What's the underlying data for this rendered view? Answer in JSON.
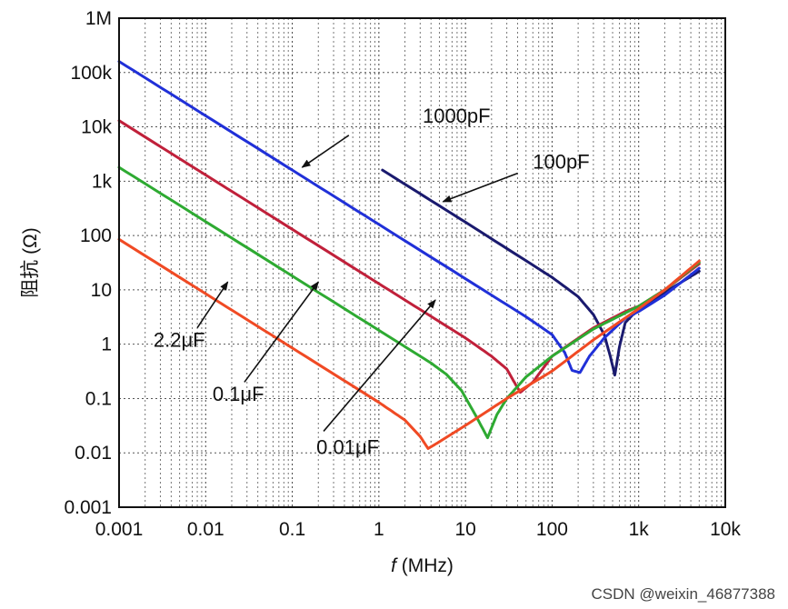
{
  "chart_data": {
    "type": "line",
    "xlabel": "f (MHz)",
    "xlabel_italic": "f",
    "xlabel_rest": " (MHz)",
    "ylabel": "阻抗 (Ω)",
    "xscale": "log",
    "yscale": "log",
    "xlim": [
      0.001,
      10000
    ],
    "ylim": [
      0.001,
      1000000
    ],
    "x_ticks": [
      0.001,
      0.01,
      0.1,
      1,
      10,
      100,
      1000,
      10000
    ],
    "x_tick_labels": [
      "0.001",
      "0.01",
      "0.1",
      "1",
      "10",
      "100",
      "1k",
      "10k"
    ],
    "y_ticks": [
      0.001,
      0.01,
      0.1,
      1,
      10,
      100,
      1000,
      10000,
      100000,
      1000000
    ],
    "y_tick_labels": [
      "0.001",
      "0.01",
      "0.1",
      "1",
      "10",
      "100",
      "1k",
      "10k",
      "100k",
      "1M"
    ],
    "grid": true,
    "series": [
      {
        "name": "100pF",
        "color": "#1a1a6e",
        "points": [
          [
            1.1,
            1600
          ],
          [
            10,
            176
          ],
          [
            100,
            17
          ],
          [
            200,
            7.5
          ],
          [
            300,
            3.5
          ],
          [
            400,
            1.5
          ],
          [
            470,
            0.6
          ],
          [
            530,
            0.27
          ],
          [
            600,
            0.9
          ],
          [
            700,
            2.5
          ],
          [
            1000,
            4.5
          ],
          [
            2000,
            9
          ],
          [
            5000,
            22
          ]
        ]
      },
      {
        "name": "1000pF",
        "color": "#2030d8",
        "points": [
          [
            0.001,
            160000
          ],
          [
            0.01,
            16000
          ],
          [
            0.1,
            1600
          ],
          [
            1,
            160
          ],
          [
            10,
            16
          ],
          [
            50,
            3.2
          ],
          [
            100,
            1.5
          ],
          [
            140,
            0.7
          ],
          [
            170,
            0.33
          ],
          [
            210,
            0.3
          ],
          [
            270,
            0.6
          ],
          [
            400,
            1.3
          ],
          [
            700,
            3
          ],
          [
            1000,
            4
          ],
          [
            2000,
            8
          ],
          [
            5000,
            25
          ]
        ]
      },
      {
        "name": "0.01μF",
        "color": "#c0203a",
        "points": [
          [
            0.001,
            13000
          ],
          [
            0.01,
            1300
          ],
          [
            0.1,
            130
          ],
          [
            1,
            13
          ],
          [
            5,
            2.6
          ],
          [
            10,
            1.3
          ],
          [
            20,
            0.6
          ],
          [
            30,
            0.35
          ],
          [
            38,
            0.18
          ],
          [
            43,
            0.13
          ],
          [
            60,
            0.2
          ],
          [
            100,
            0.6
          ],
          [
            300,
            2
          ],
          [
            700,
            4
          ],
          [
            1000,
            5
          ],
          [
            2000,
            10
          ],
          [
            5000,
            30
          ]
        ]
      },
      {
        "name": "0.1μF",
        "color": "#2eaa32",
        "points": [
          [
            0.001,
            1800
          ],
          [
            0.01,
            180
          ],
          [
            0.1,
            18
          ],
          [
            1,
            1.8
          ],
          [
            2,
            0.9
          ],
          [
            4,
            0.45
          ],
          [
            6,
            0.28
          ],
          [
            9,
            0.14
          ],
          [
            13,
            0.05
          ],
          [
            18,
            0.019
          ],
          [
            23,
            0.05
          ],
          [
            30,
            0.1
          ],
          [
            50,
            0.25
          ],
          [
            100,
            0.6
          ],
          [
            300,
            1.9
          ],
          [
            1000,
            5
          ],
          [
            2000,
            10
          ],
          [
            5000,
            32
          ]
        ]
      },
      {
        "name": "2.2μF",
        "color": "#f04a24",
        "points": [
          [
            0.001,
            85
          ],
          [
            0.01,
            8.5
          ],
          [
            0.1,
            0.85
          ],
          [
            1,
            0.085
          ],
          [
            2,
            0.04
          ],
          [
            3,
            0.02
          ],
          [
            3.7,
            0.012
          ],
          [
            5,
            0.016
          ],
          [
            10,
            0.032
          ],
          [
            30,
            0.1
          ],
          [
            100,
            0.32
          ],
          [
            300,
            1.2
          ],
          [
            1000,
            4.5
          ],
          [
            2000,
            10
          ],
          [
            5000,
            34
          ]
        ]
      }
    ],
    "annotations": [
      {
        "text": "1000pF",
        "label_at": [
          3.2,
          12000
        ],
        "arrow_to": [
          0.13,
          1800
        ],
        "arrow_from": [
          0.45,
          7000
        ]
      },
      {
        "text": "100pF",
        "label_at": [
          60,
          1700
        ],
        "arrow_to": [
          5.5,
          420
        ],
        "arrow_from": [
          40,
          1400
        ]
      },
      {
        "text": "2.2μF",
        "label_at": [
          0.0025,
          0.9
        ],
        "arrow_to": [
          0.018,
          14
        ],
        "arrow_from": [
          0.008,
          2
        ]
      },
      {
        "text": "0.1μF",
        "label_at": [
          0.012,
          0.09
        ],
        "arrow_to": [
          0.2,
          14
        ],
        "arrow_from": [
          0.028,
          0.2
        ]
      },
      {
        "text": "0.01μF",
        "label_at": [
          0.19,
          0.0095
        ],
        "arrow_to": [
          4.5,
          6.5
        ],
        "arrow_from": [
          0.23,
          0.025
        ]
      }
    ]
  },
  "watermark": "CSDN @weixin_46877388"
}
